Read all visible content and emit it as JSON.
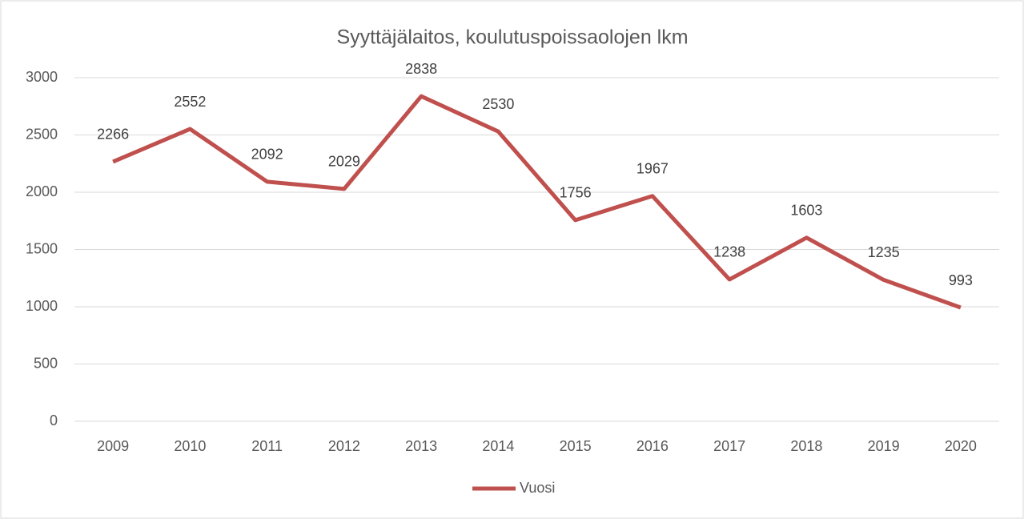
{
  "chart_data": {
    "type": "line",
    "title": "Syyttäjälaitos, koulutuspoissaolojen lkm",
    "categories": [
      "2009",
      "2010",
      "2011",
      "2012",
      "2013",
      "2014",
      "2015",
      "2016",
      "2017",
      "2018",
      "2019",
      "2020"
    ],
    "series": [
      {
        "name": "Vuosi",
        "color": "#c0504d",
        "values": [
          2266,
          2552,
          2092,
          2029,
          2838,
          2530,
          1756,
          1967,
          1238,
          1603,
          1235,
          993
        ]
      }
    ],
    "ylim": [
      0,
      3000
    ],
    "yticks": [
      0,
      500,
      1000,
      1500,
      2000,
      2500,
      3000
    ],
    "grid": true,
    "legend": "bottom"
  }
}
